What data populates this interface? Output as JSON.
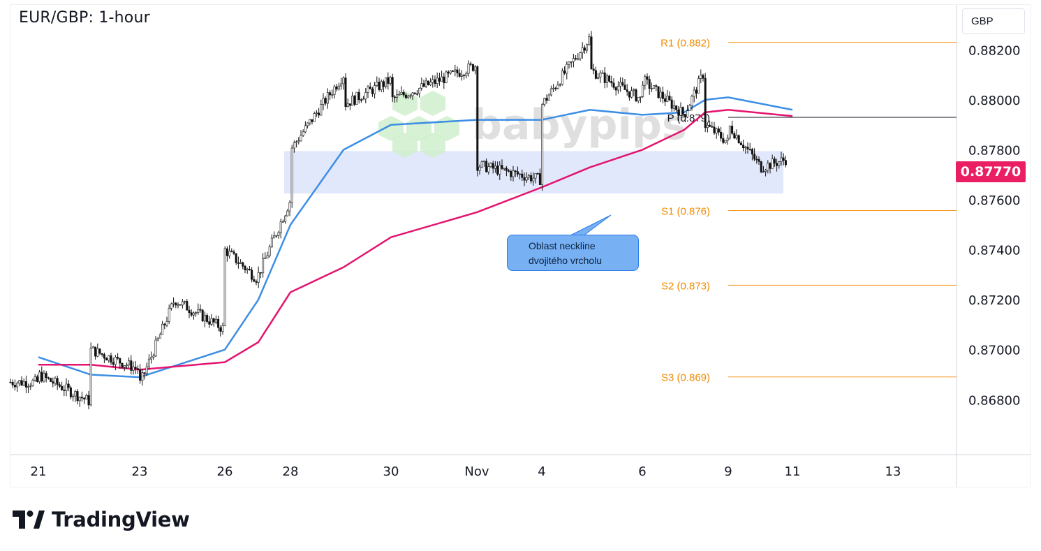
{
  "chart_data": {
    "type": "candlestick",
    "title": "EUR/GBP: 1-hour",
    "currency": "GBP",
    "last_price": "0.87770",
    "y_range": [
      0.8658,
      0.8838
    ],
    "y_ticks": [
      "0.88200",
      "0.88000",
      "0.87800",
      "0.87600",
      "0.87400",
      "0.87200",
      "0.87000",
      "0.86800"
    ],
    "x_ticks": [
      "21",
      "23",
      "26",
      "28",
      "30",
      "Nov",
      "4",
      "6",
      "9",
      "11",
      "13"
    ],
    "pivot_levels": [
      {
        "label": "R1 (0.882)",
        "value": 0.8823,
        "color": "#f7931a"
      },
      {
        "label": "P (0.879)",
        "value": 0.8793,
        "color": "#131722"
      },
      {
        "label": "S1 (0.876)",
        "value": 0.87557,
        "color": "#f7931a"
      },
      {
        "label": "S2 (0.873)",
        "value": 0.87258,
        "color": "#f7931a"
      },
      {
        "label": "S3 (0.869)",
        "value": 0.86891,
        "color": "#f7931a"
      }
    ],
    "neckline_zone": {
      "low": 0.87625,
      "high": 0.87795,
      "color": "#dfe6fb"
    },
    "annotation": "Oblast neckline\ndvojitého vrcholu",
    "series": [
      {
        "name": "moving-average-blue",
        "color": "#3d8ee6",
        "points": [
          [
            "21",
            0.8697
          ],
          [
            "22",
            0.869
          ],
          [
            "23",
            0.8689
          ],
          [
            "26",
            0.87
          ],
          [
            "27",
            0.872
          ],
          [
            "28",
            0.875
          ],
          [
            "29",
            0.878
          ],
          [
            "30",
            0.879
          ],
          [
            "Nov",
            0.8792
          ],
          [
            "4",
            0.8792
          ],
          [
            "5",
            0.8796
          ],
          [
            "6",
            0.8794
          ],
          [
            "7",
            0.8795
          ],
          [
            "8",
            0.88
          ],
          [
            "9",
            0.8801
          ],
          [
            "11",
            0.8796
          ]
        ]
      },
      {
        "name": "moving-average-magenta",
        "color": "#e3146f",
        "points": [
          [
            "21",
            0.8694
          ],
          [
            "22",
            0.8694
          ],
          [
            "23",
            0.8692
          ],
          [
            "26",
            0.8695
          ],
          [
            "27",
            0.8703
          ],
          [
            "28",
            0.8723
          ],
          [
            "29",
            0.8733
          ],
          [
            "30",
            0.8745
          ],
          [
            "Nov",
            0.8755
          ],
          [
            "4",
            0.8765
          ],
          [
            "5",
            0.8773
          ],
          [
            "6",
            0.878
          ],
          [
            "7",
            0.8788
          ],
          [
            "8",
            0.8795
          ],
          [
            "9",
            0.8796
          ],
          [
            "11",
            0.87935
          ]
        ]
      },
      {
        "name": "price",
        "color": "#000000",
        "points": [
          [
            "21",
            0.8687
          ],
          [
            "21",
            0.869
          ],
          [
            "22",
            0.8679
          ],
          [
            "22",
            0.87
          ],
          [
            "23",
            0.8692
          ],
          [
            "23",
            0.8686
          ],
          [
            "24",
            0.872
          ],
          [
            "26",
            0.8708
          ],
          [
            "26",
            0.874
          ],
          [
            "27",
            0.8728
          ],
          [
            "27",
            0.873
          ],
          [
            "28",
            0.876
          ],
          [
            "28",
            0.878
          ],
          [
            "29",
            0.881
          ],
          [
            "29",
            0.8798
          ],
          [
            "30",
            0.8808
          ],
          [
            "30",
            0.88
          ],
          [
            "Nov",
            0.8814
          ],
          [
            "Nov",
            0.8774
          ],
          [
            "4",
            0.8768
          ],
          [
            "4",
            0.8798
          ],
          [
            "5",
            0.8825
          ],
          [
            "5",
            0.8812
          ],
          [
            "6",
            0.88
          ],
          [
            "6",
            0.8808
          ],
          [
            "7",
            0.8794
          ],
          [
            "8",
            0.8812
          ],
          [
            "8",
            0.879
          ],
          [
            "9",
            0.8783
          ],
          [
            "9",
            0.879
          ],
          [
            "10",
            0.8773
          ],
          [
            "11",
            0.8777
          ]
        ]
      }
    ]
  },
  "watermark": "babypips",
  "branding": "TradingView"
}
